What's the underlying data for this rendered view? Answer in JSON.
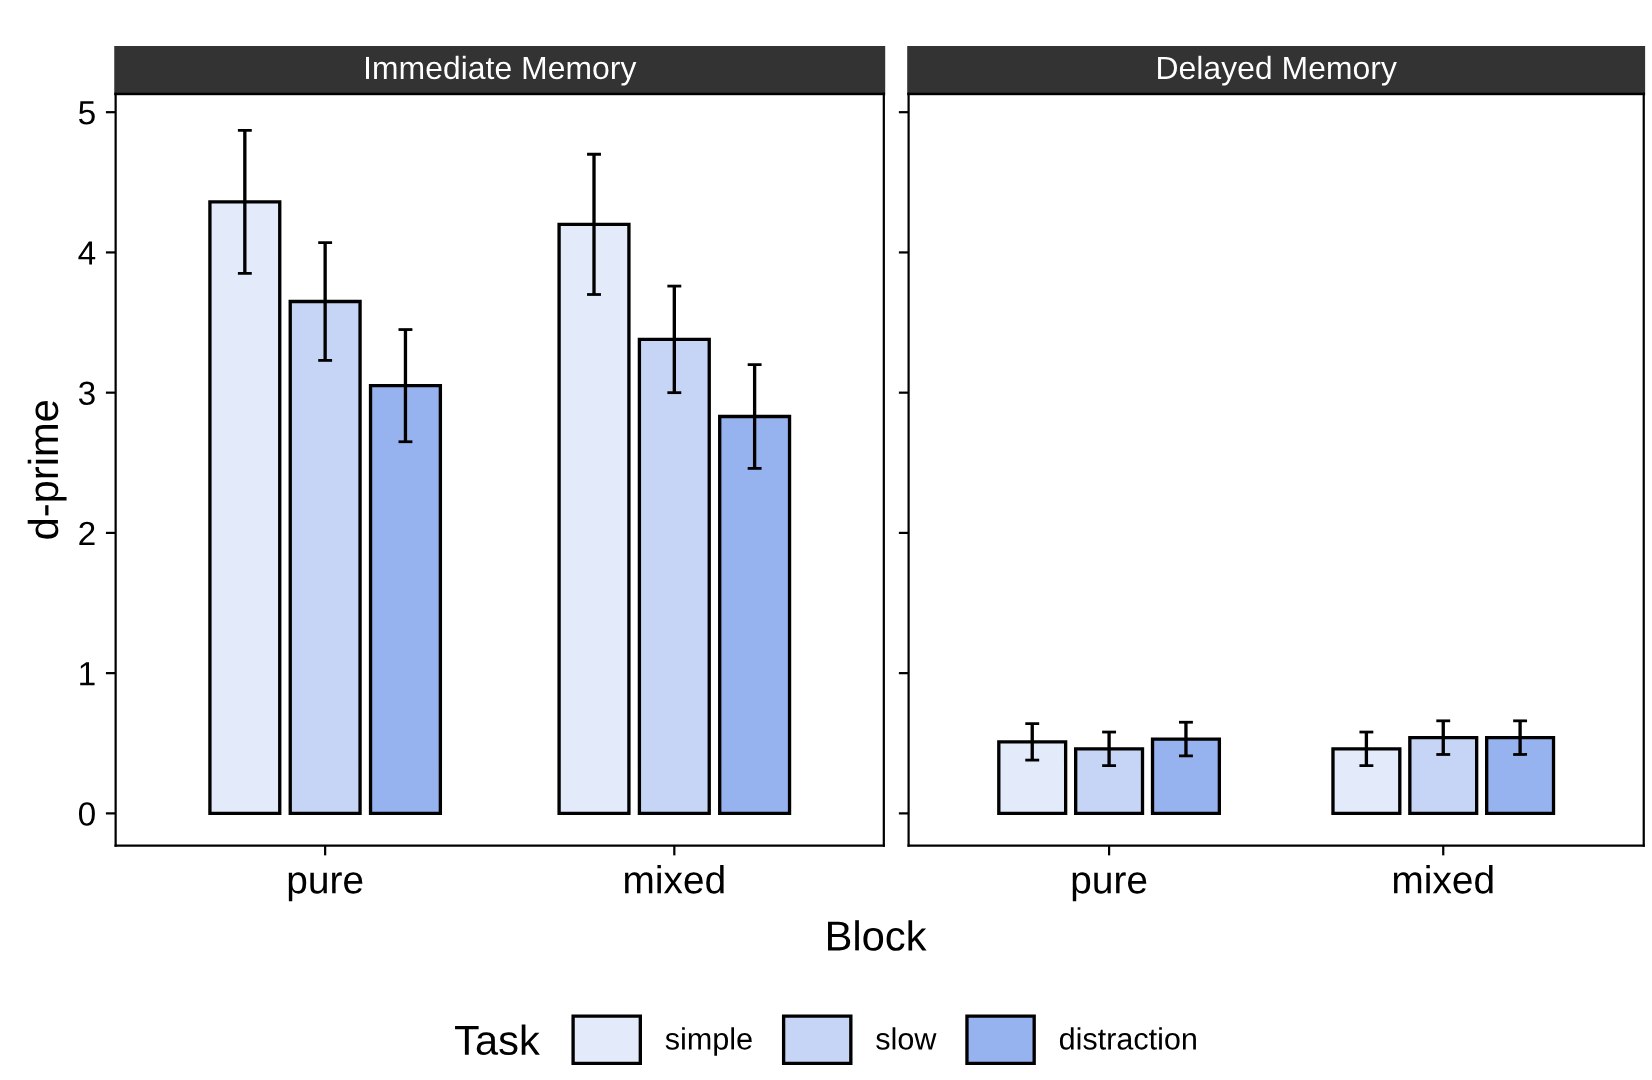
{
  "chart_data": [
    {
      "type": "bar",
      "title": "Immediate Memory",
      "xlabel": "Block",
      "ylabel": "d-prime",
      "legend_title": "Task",
      "legend": "bottom",
      "categories": [
        "pure",
        "mixed"
      ],
      "ylim": [
        -0.23,
        5.13
      ],
      "yticks": [
        0,
        1,
        2,
        3,
        4,
        5
      ],
      "series": [
        {
          "name": "simple",
          "color": "#e3ebfb",
          "values": [
            4.36,
            4.2
          ],
          "errors": [
            0.51,
            0.5
          ]
        },
        {
          "name": "slow",
          "color": "#c6d5f5",
          "values": [
            3.65,
            3.38
          ],
          "errors": [
            0.42,
            0.38
          ]
        },
        {
          "name": "distraction",
          "color": "#97b3ef",
          "values": [
            3.05,
            2.83
          ],
          "errors": [
            0.4,
            0.37
          ]
        }
      ]
    },
    {
      "type": "bar",
      "title": "Delayed Memory",
      "categories": [
        "pure",
        "mixed"
      ],
      "ylim": [
        -0.23,
        5.13
      ],
      "yticks": [
        0,
        1,
        2,
        3,
        4,
        5
      ],
      "tick_labels": "x",
      "series": [
        {
          "color": "#e3ebfb",
          "values": [
            0.51,
            0.46
          ],
          "errors": [
            0.13,
            0.12
          ]
        },
        {
          "color": "#c6d5f5",
          "values": [
            0.46,
            0.54
          ],
          "errors": [
            0.12,
            0.12
          ]
        },
        {
          "color": "#97b3ef",
          "values": [
            0.53,
            0.54
          ],
          "errors": [
            0.12,
            0.12
          ]
        }
      ]
    }
  ]
}
